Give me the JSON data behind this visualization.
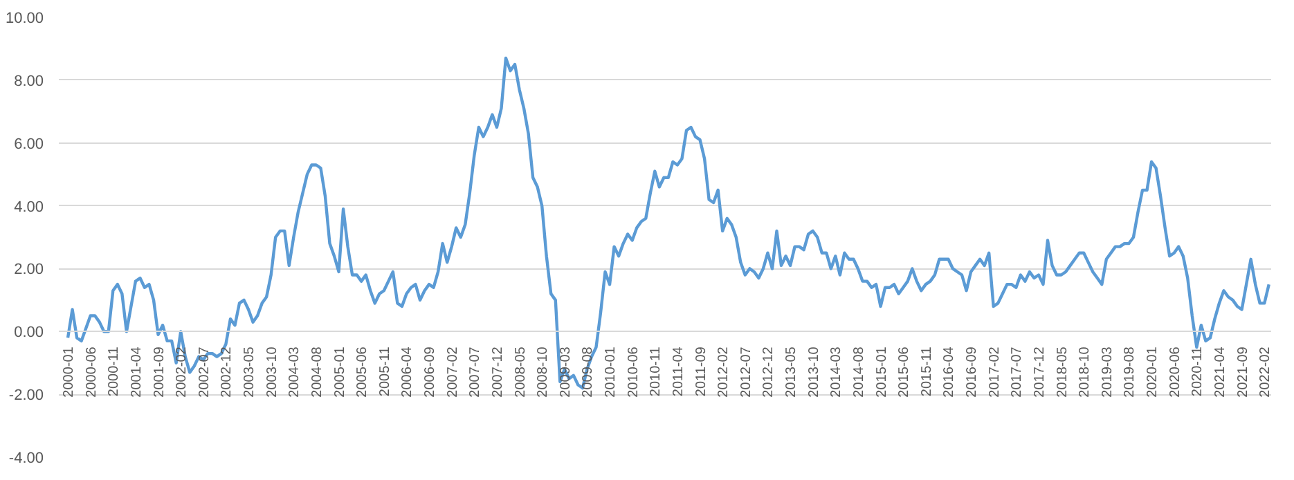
{
  "chart_data": {
    "type": "line",
    "x": [
      "2000-01",
      "2000-02",
      "2000-03",
      "2000-04",
      "2000-05",
      "2000-06",
      "2000-07",
      "2000-08",
      "2000-09",
      "2000-10",
      "2000-11",
      "2000-12",
      "2001-01",
      "2001-02",
      "2001-03",
      "2001-04",
      "2001-05",
      "2001-06",
      "2001-07",
      "2001-08",
      "2001-09",
      "2001-10",
      "2001-11",
      "2001-12",
      "2002-01",
      "2002-02",
      "2002-03",
      "2002-04",
      "2002-05",
      "2002-06",
      "2002-07",
      "2002-08",
      "2002-09",
      "2002-10",
      "2002-11",
      "2002-12",
      "2003-01",
      "2003-02",
      "2003-03",
      "2003-04",
      "2003-05",
      "2003-06",
      "2003-07",
      "2003-08",
      "2003-09",
      "2003-10",
      "2003-11",
      "2003-12",
      "2004-01",
      "2004-02",
      "2004-03",
      "2004-04",
      "2004-05",
      "2004-06",
      "2004-07",
      "2004-08",
      "2004-09",
      "2004-10",
      "2004-11",
      "2004-12",
      "2005-01",
      "2005-02",
      "2005-03",
      "2005-04",
      "2005-05",
      "2005-06",
      "2005-07",
      "2005-08",
      "2005-09",
      "2005-10",
      "2005-11",
      "2005-12",
      "2006-01",
      "2006-02",
      "2006-03",
      "2006-04",
      "2006-05",
      "2006-06",
      "2006-07",
      "2006-08",
      "2006-09",
      "2006-10",
      "2006-11",
      "2006-12",
      "2007-01",
      "2007-02",
      "2007-03",
      "2007-04",
      "2007-05",
      "2007-06",
      "2007-07",
      "2007-08",
      "2007-09",
      "2007-10",
      "2007-11",
      "2007-12",
      "2008-01",
      "2008-02",
      "2008-03",
      "2008-04",
      "2008-05",
      "2008-06",
      "2008-07",
      "2008-08",
      "2008-09",
      "2008-10",
      "2008-11",
      "2008-12",
      "2009-01",
      "2009-02",
      "2009-03",
      "2009-04",
      "2009-05",
      "2009-06",
      "2009-07",
      "2009-08",
      "2009-09",
      "2009-10",
      "2009-11",
      "2009-12",
      "2010-01",
      "2010-02",
      "2010-03",
      "2010-04",
      "2010-05",
      "2010-06",
      "2010-07",
      "2010-08",
      "2010-09",
      "2010-10",
      "2010-11",
      "2010-12",
      "2011-01",
      "2011-02",
      "2011-03",
      "2011-04",
      "2011-05",
      "2011-06",
      "2011-07",
      "2011-08",
      "2011-09",
      "2011-10",
      "2011-11",
      "2011-12",
      "2012-01",
      "2012-02",
      "2012-03",
      "2012-04",
      "2012-05",
      "2012-06",
      "2012-07",
      "2012-08",
      "2012-09",
      "2012-10",
      "2012-11",
      "2012-12",
      "2013-01",
      "2013-02",
      "2013-03",
      "2013-04",
      "2013-05",
      "2013-06",
      "2013-07",
      "2013-08",
      "2013-09",
      "2013-10",
      "2013-11",
      "2013-12",
      "2014-01",
      "2014-02",
      "2014-03",
      "2014-04",
      "2014-05",
      "2014-06",
      "2014-07",
      "2014-08",
      "2014-09",
      "2014-10",
      "2014-11",
      "2014-12",
      "2015-01",
      "2015-02",
      "2015-03",
      "2015-04",
      "2015-05",
      "2015-06",
      "2015-07",
      "2015-08",
      "2015-09",
      "2015-10",
      "2015-11",
      "2015-12",
      "2016-01",
      "2016-02",
      "2016-03",
      "2016-04",
      "2016-05",
      "2016-06",
      "2016-07",
      "2016-08",
      "2016-09",
      "2016-10",
      "2016-11",
      "2016-12",
      "2017-01",
      "2017-02",
      "2017-03",
      "2017-04",
      "2017-05",
      "2017-06",
      "2017-07",
      "2017-08",
      "2017-09",
      "2017-10",
      "2017-11",
      "2017-12",
      "2018-01",
      "2018-02",
      "2018-03",
      "2018-04",
      "2018-05",
      "2018-06",
      "2018-07",
      "2018-08",
      "2018-09",
      "2018-10",
      "2018-11",
      "2018-12",
      "2019-01",
      "2019-02",
      "2019-03",
      "2019-04",
      "2019-05",
      "2019-06",
      "2019-07",
      "2019-08",
      "2019-09",
      "2019-10",
      "2019-11",
      "2019-12",
      "2020-01",
      "2020-02",
      "2020-03",
      "2020-04",
      "2020-05",
      "2020-06",
      "2020-07",
      "2020-08",
      "2020-09",
      "2020-10",
      "2020-11",
      "2020-12",
      "2021-01",
      "2021-02",
      "2021-03",
      "2021-04",
      "2021-05",
      "2021-06",
      "2021-07",
      "2021-08",
      "2021-09",
      "2021-10",
      "2021-11",
      "2021-12",
      "2022-01",
      "2022-02",
      "2022-03"
    ],
    "series": [
      {
        "color": "#5b9bd5",
        "values": [
          -0.2,
          0.7,
          -0.2,
          -0.3,
          0.1,
          0.5,
          0.5,
          0.3,
          0.0,
          0.0,
          1.3,
          1.5,
          1.2,
          0.0,
          0.8,
          1.6,
          1.7,
          1.4,
          1.5,
          1.0,
          -0.1,
          0.2,
          -0.3,
          -0.3,
          -1.0,
          0.0,
          -0.8,
          -1.3,
          -1.1,
          -0.8,
          -0.9,
          -0.7,
          -0.7,
          -0.8,
          -0.7,
          -0.4,
          0.4,
          0.2,
          0.9,
          1.0,
          0.7,
          0.3,
          0.5,
          0.9,
          1.1,
          1.8,
          3.0,
          3.2,
          3.2,
          2.1,
          3.0,
          3.8,
          4.4,
          5.0,
          5.3,
          5.3,
          5.2,
          4.3,
          2.8,
          2.4,
          1.9,
          3.9,
          2.7,
          1.8,
          1.8,
          1.6,
          1.8,
          1.3,
          0.9,
          1.2,
          1.3,
          1.6,
          1.9,
          0.9,
          0.8,
          1.2,
          1.4,
          1.5,
          1.0,
          1.3,
          1.5,
          1.4,
          1.9,
          2.8,
          2.2,
          2.7,
          3.3,
          3.0,
          3.4,
          4.4,
          5.6,
          6.5,
          6.2,
          6.5,
          6.9,
          6.5,
          7.1,
          8.7,
          8.3,
          8.5,
          7.7,
          7.1,
          6.3,
          4.9,
          4.6,
          4.0,
          2.4,
          1.2,
          1.0,
          -1.6,
          -1.2,
          -1.5,
          -1.4,
          -1.7,
          -1.8,
          -1.2,
          -0.8,
          -0.5,
          0.6,
          1.9,
          1.5,
          2.7,
          2.4,
          2.8,
          3.1,
          2.9,
          3.3,
          3.5,
          3.6,
          4.4,
          5.1,
          4.6,
          4.9,
          4.9,
          5.4,
          5.3,
          5.5,
          6.4,
          6.5,
          6.2,
          6.1,
          5.5,
          4.2,
          4.1,
          4.5,
          3.2,
          3.6,
          3.4,
          3.0,
          2.2,
          1.8,
          2.0,
          1.9,
          1.7,
          2.0,
          2.5,
          2.0,
          3.2,
          2.1,
          2.4,
          2.1,
          2.7,
          2.7,
          2.6,
          3.1,
          3.2,
          3.0,
          2.5,
          2.5,
          2.0,
          2.4,
          1.8,
          2.5,
          2.3,
          2.3,
          2.0,
          1.6,
          1.6,
          1.4,
          1.5,
          0.8,
          1.4,
          1.4,
          1.5,
          1.2,
          1.4,
          1.6,
          2.0,
          1.6,
          1.3,
          1.5,
          1.6,
          1.8,
          2.3,
          2.3,
          2.3,
          2.0,
          1.9,
          1.8,
          1.3,
          1.9,
          2.1,
          2.3,
          2.1,
          2.5,
          0.8,
          0.9,
          1.2,
          1.5,
          1.5,
          1.4,
          1.8,
          1.6,
          1.9,
          1.7,
          1.8,
          1.5,
          2.9,
          2.1,
          1.8,
          1.8,
          1.9,
          2.1,
          2.3,
          2.5,
          2.5,
          2.2,
          1.9,
          1.7,
          1.5,
          2.3,
          2.5,
          2.7,
          2.7,
          2.8,
          2.8,
          3.0,
          3.8,
          4.5,
          4.5,
          5.4,
          5.2,
          4.3,
          3.3,
          2.4,
          2.5,
          2.7,
          2.4,
          1.7,
          0.5,
          -0.5,
          0.2,
          -0.3,
          -0.2,
          0.4,
          0.9,
          1.3,
          1.1,
          1.0,
          0.8,
          0.7,
          1.5,
          2.3,
          1.5,
          0.9,
          0.9,
          1.5
        ]
      }
    ],
    "xlim": [
      "2000-01",
      "2022-03"
    ],
    "xticks": [
      "2000-01",
      "2000-06",
      "2000-11",
      "2001-04",
      "2001-09",
      "2002-02",
      "2002-07",
      "2002-12",
      "2003-05",
      "2003-10",
      "2004-03",
      "2004-08",
      "2005-01",
      "2005-06",
      "2005-11",
      "2006-04",
      "2006-09",
      "2007-02",
      "2007-07",
      "2007-12",
      "2008-05",
      "2008-10",
      "2009-03",
      "2009-08",
      "2010-01",
      "2010-06",
      "2010-11",
      "2011-04",
      "2011-09",
      "2012-02",
      "2012-07",
      "2012-12",
      "2013-05",
      "2013-10",
      "2014-03",
      "2014-08",
      "2015-01",
      "2015-06",
      "2015-11",
      "2016-04",
      "2016-09",
      "2017-02",
      "2017-07",
      "2017-12",
      "2018-05",
      "2018-10",
      "2019-03",
      "2019-08",
      "2020-01",
      "2020-06",
      "2020-11",
      "2021-04",
      "2021-09",
      "2022-02"
    ],
    "ylim": [
      -4,
      10
    ],
    "yticks": [
      {
        "value": -4,
        "label": "-4.00"
      },
      {
        "value": -2,
        "label": "-2.00"
      },
      {
        "value": 0,
        "label": "0.00"
      },
      {
        "value": 2,
        "label": "2.00"
      },
      {
        "value": 4,
        "label": "4.00"
      },
      {
        "value": 6,
        "label": "6.00"
      },
      {
        "value": 8,
        "label": "8.00"
      },
      {
        "value": 10,
        "label": "10.00"
      }
    ],
    "grid": "y",
    "marker": "none",
    "line_style": "solid"
  }
}
